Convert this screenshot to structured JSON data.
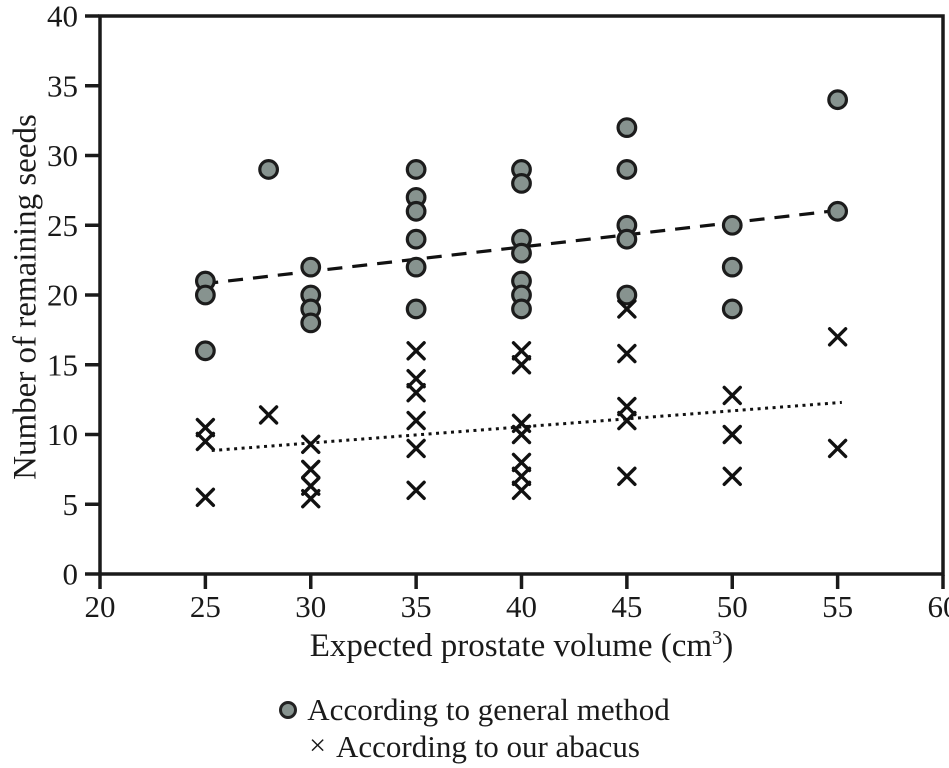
{
  "chart_data": {
    "type": "scatter",
    "title": "",
    "xlabel": "Expected prostate volume (cm³)",
    "xlabel_parts": {
      "prefix": "Expected prostate volume (cm",
      "sup": "3",
      "suffix": ")"
    },
    "ylabel": "Number of remaining seeds",
    "xlim": [
      20,
      60
    ],
    "ylim": [
      0,
      40
    ],
    "xticks": [
      20,
      25,
      30,
      35,
      40,
      45,
      50,
      55,
      60
    ],
    "yticks": [
      0,
      5,
      10,
      15,
      20,
      25,
      30,
      35,
      40
    ],
    "grid": false,
    "legend_position": "bottom-center",
    "series": [
      {
        "name": "According to general method",
        "marker": "circle",
        "marker_fill": "#87938f",
        "marker_stroke": "#1c1c1c",
        "trend_line": {
          "style": "dashed",
          "x1": 24.9,
          "y1": 20.8,
          "x2": 55.2,
          "y2": 26.1
        },
        "points": [
          [
            25,
            21
          ],
          [
            25,
            20
          ],
          [
            25,
            16
          ],
          [
            28,
            29
          ],
          [
            30,
            22
          ],
          [
            30,
            20
          ],
          [
            30,
            19
          ],
          [
            30,
            18
          ],
          [
            35,
            29
          ],
          [
            35,
            27
          ],
          [
            35,
            26
          ],
          [
            35,
            24
          ],
          [
            35,
            22
          ],
          [
            35,
            19
          ],
          [
            40,
            29
          ],
          [
            40,
            28
          ],
          [
            40,
            24
          ],
          [
            40,
            23
          ],
          [
            40,
            21
          ],
          [
            40,
            20
          ],
          [
            40,
            19
          ],
          [
            45,
            32
          ],
          [
            45,
            29
          ],
          [
            45,
            25
          ],
          [
            45,
            24
          ],
          [
            45,
            20
          ],
          [
            50,
            25
          ],
          [
            50,
            22
          ],
          [
            50,
            19
          ],
          [
            55,
            34
          ],
          [
            55,
            26
          ]
        ]
      },
      {
        "name": "According to our abacus",
        "marker": "x",
        "marker_stroke": "#111111",
        "trend_line": {
          "style": "dotted",
          "x1": 25.3,
          "y1": 8.85,
          "x2": 55.2,
          "y2": 12.3
        },
        "points": [
          [
            25,
            10.5
          ],
          [
            25,
            9.5
          ],
          [
            25,
            5.5
          ],
          [
            28,
            11.4
          ],
          [
            30,
            9.3
          ],
          [
            30,
            7.5
          ],
          [
            30,
            6.3
          ],
          [
            30,
            5.4
          ],
          [
            35,
            16
          ],
          [
            35,
            14
          ],
          [
            35,
            13
          ],
          [
            35,
            11
          ],
          [
            35,
            9
          ],
          [
            35,
            6
          ],
          [
            40,
            16
          ],
          [
            40,
            15
          ],
          [
            40,
            10.8
          ],
          [
            40,
            10
          ],
          [
            40,
            8
          ],
          [
            40,
            7
          ],
          [
            40,
            6
          ],
          [
            45,
            19
          ],
          [
            45,
            15.8
          ],
          [
            45,
            12
          ],
          [
            45,
            11
          ],
          [
            45,
            7
          ],
          [
            50,
            12.8
          ],
          [
            50,
            10
          ],
          [
            50,
            7
          ],
          [
            55,
            17
          ],
          [
            55,
            9
          ]
        ]
      }
    ]
  },
  "legend": {
    "items": [
      {
        "label": "According to general method",
        "marker": "circle",
        "marker_glyph": "●"
      },
      {
        "label": "According to our abacus",
        "marker": "x",
        "marker_glyph": "×"
      }
    ]
  }
}
